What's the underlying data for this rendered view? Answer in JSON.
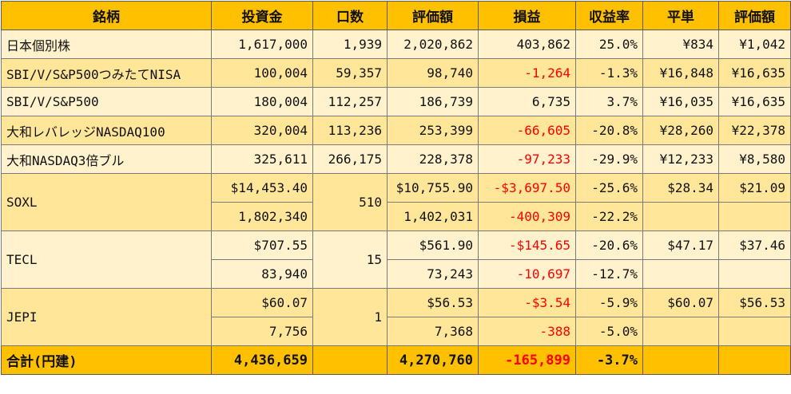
{
  "header": [
    "銘柄",
    "投資金",
    "口数",
    "評価額",
    "損益",
    "収益率",
    "平単",
    "評価額"
  ],
  "rows": [
    {
      "name": "日本個別株",
      "cost": "1,617,000",
      "units": "1,939",
      "value": "2,020,862",
      "pl": "403,862",
      "rate": "25.0%",
      "avg": "¥834",
      "price": "¥1,042"
    },
    {
      "name": "SBI/V/S&P500つみたてNISA",
      "cost": "100,004",
      "units": "59,357",
      "value": "98,740",
      "pl": "-1,264",
      "rate": "-1.3%",
      "avg": "¥16,848",
      "price": "¥16,635"
    },
    {
      "name": "SBI/V/S&P500",
      "cost": "180,004",
      "units": "112,257",
      "value": "186,739",
      "pl": "6,735",
      "rate": "3.7%",
      "avg": "¥16,035",
      "price": "¥16,635"
    },
    {
      "name": "大和レバレッジNASDAQ100",
      "cost": "320,004",
      "units": "113,236",
      "value": "253,399",
      "pl": "-66,605",
      "rate": "-20.8%",
      "avg": "¥28,260",
      "price": "¥22,378"
    },
    {
      "name": "大和NASDAQ3倍ブル",
      "cost": "325,611",
      "units": "266,175",
      "value": "228,378",
      "pl": "-97,233",
      "rate": "-29.9%",
      "avg": "¥12,233",
      "price": "¥8,580"
    }
  ],
  "groups": [
    {
      "name": "SOXL",
      "units": "510",
      "usd": {
        "cost": "$14,453.40",
        "value": "$10,755.90",
        "pl": "-$3,697.50",
        "rate": "-25.6%",
        "avg": "$28.34",
        "price": "$21.09"
      },
      "jpy": {
        "cost": "1,802,340",
        "value": "1,402,031",
        "pl": "-400,309",
        "rate": "-22.2%"
      }
    },
    {
      "name": "TECL",
      "units": "15",
      "usd": {
        "cost": "$707.55",
        "value": "$561.90",
        "pl": "-$145.65",
        "rate": "-20.6%",
        "avg": "$47.17",
        "price": "$37.46"
      },
      "jpy": {
        "cost": "83,940",
        "value": "73,243",
        "pl": "-10,697",
        "rate": "-12.7%"
      }
    },
    {
      "name": "JEPI",
      "units": "1",
      "usd": {
        "cost": "$60.07",
        "value": "$56.53",
        "pl": "-$3.54",
        "rate": "-5.9%",
        "avg": "$60.07",
        "price": "$56.53"
      },
      "jpy": {
        "cost": "7,756",
        "value": "7,368",
        "pl": "-388",
        "rate": "-5.0%"
      }
    }
  ],
  "total": {
    "label": "合計(円建)",
    "cost": "4,436,659",
    "value": "4,270,760",
    "pl": "-165,899",
    "rate": "-3.7%"
  },
  "colors": {
    "header": "#ffc000",
    "band_light": "#fff2cc",
    "band_dark": "#ffe699",
    "negative": "#ff0000",
    "border": "#7a7a7a"
  }
}
